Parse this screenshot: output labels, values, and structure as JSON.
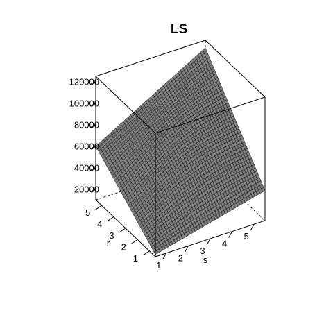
{
  "chart_data": {
    "type": "surface",
    "title": "LS",
    "xlabel": "s",
    "ylabel": "r",
    "zlabel": "",
    "xlim": [
      0.5,
      5.5
    ],
    "ylim": [
      0.5,
      5.5
    ],
    "zlim": [
      10000,
      125000
    ],
    "x_ticks": [
      "1",
      "2",
      "3",
      "4",
      "5"
    ],
    "y_ticks": [
      "1",
      "2",
      "3",
      "4",
      "5"
    ],
    "z_ticks": [
      "20000",
      "40000",
      "60000",
      "80000",
      "100000",
      "120000"
    ],
    "surface_corners": [
      {
        "s": 0.5,
        "r": 0.5,
        "z": 12000
      },
      {
        "s": 5.5,
        "r": 0.5,
        "z": 38000
      },
      {
        "s": 0.5,
        "r": 5.5,
        "z": 60000
      },
      {
        "s": 5.5,
        "r": 5.5,
        "z": 118000
      }
    ],
    "surface_color": "#808080",
    "mesh_color": "#000000",
    "box": true
  }
}
